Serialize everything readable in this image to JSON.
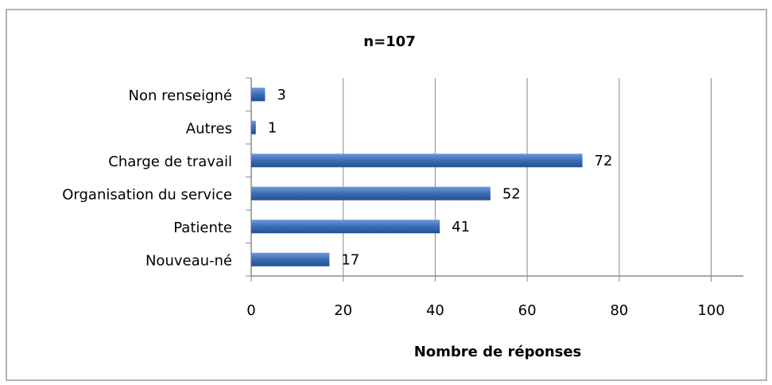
{
  "chart_data": {
    "type": "bar",
    "orientation": "horizontal",
    "title": "n=107",
    "xlabel": "Nombre de réponses",
    "categories": [
      "Non renseigné",
      "Autres",
      "Charge de travail",
      "Organisation du service",
      "Patiente",
      "Nouveau-né"
    ],
    "values": [
      3,
      1,
      72,
      52,
      41,
      17
    ],
    "color": "#3a6db7",
    "xlim": [
      0,
      107
    ],
    "xticks": [
      0,
      20,
      40,
      60,
      80,
      100
    ],
    "grid": true
  }
}
